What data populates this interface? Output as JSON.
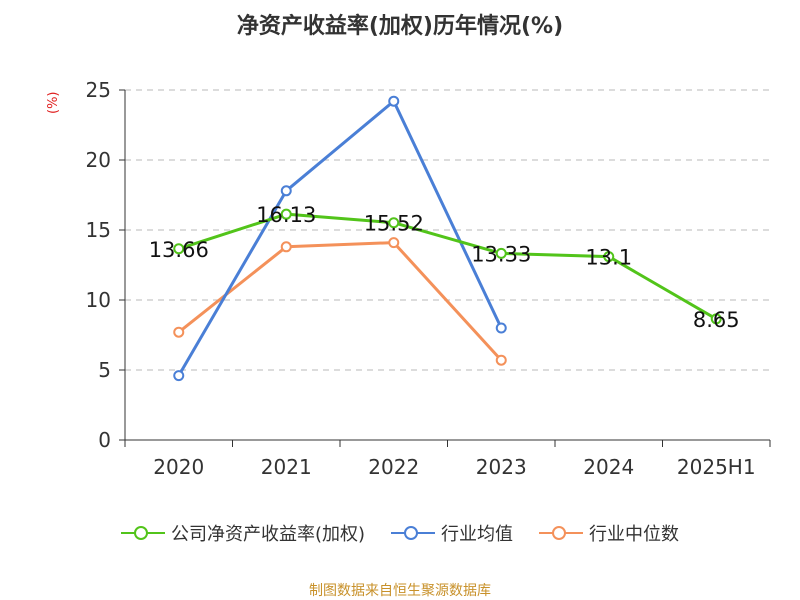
{
  "title": "净资产收益率(加权)历年情况(%)",
  "ylabel": "(%)",
  "source": "制图数据来自恒生聚源数据库",
  "chart_data": {
    "type": "line",
    "title": "净资产收益率(加权)历年情况(%)",
    "ylabel": "(%)",
    "xlabel": "",
    "categories": [
      "2020",
      "2021",
      "2022",
      "2023",
      "2024",
      "2025H1"
    ],
    "ylim": [
      0,
      25
    ],
    "yticks": [
      0,
      5,
      10,
      15,
      20,
      25
    ],
    "grid": true,
    "legend_position": "bottom",
    "series": [
      {
        "name": "公司净资产收益率(加权)",
        "color": "#52c41a",
        "values": [
          13.66,
          16.13,
          15.52,
          13.33,
          13.1,
          8.65
        ],
        "labels": [
          "13.66",
          "16.13",
          "15.52",
          "13.33",
          "13.1",
          "8.65"
        ]
      },
      {
        "name": "行业均值",
        "color": "#4a7fd6",
        "values": [
          4.6,
          17.8,
          24.2,
          8.0,
          null,
          null
        ]
      },
      {
        "name": "行业中位数",
        "color": "#f4915a",
        "values": [
          7.7,
          13.8,
          14.1,
          5.7,
          null,
          null
        ]
      }
    ]
  }
}
